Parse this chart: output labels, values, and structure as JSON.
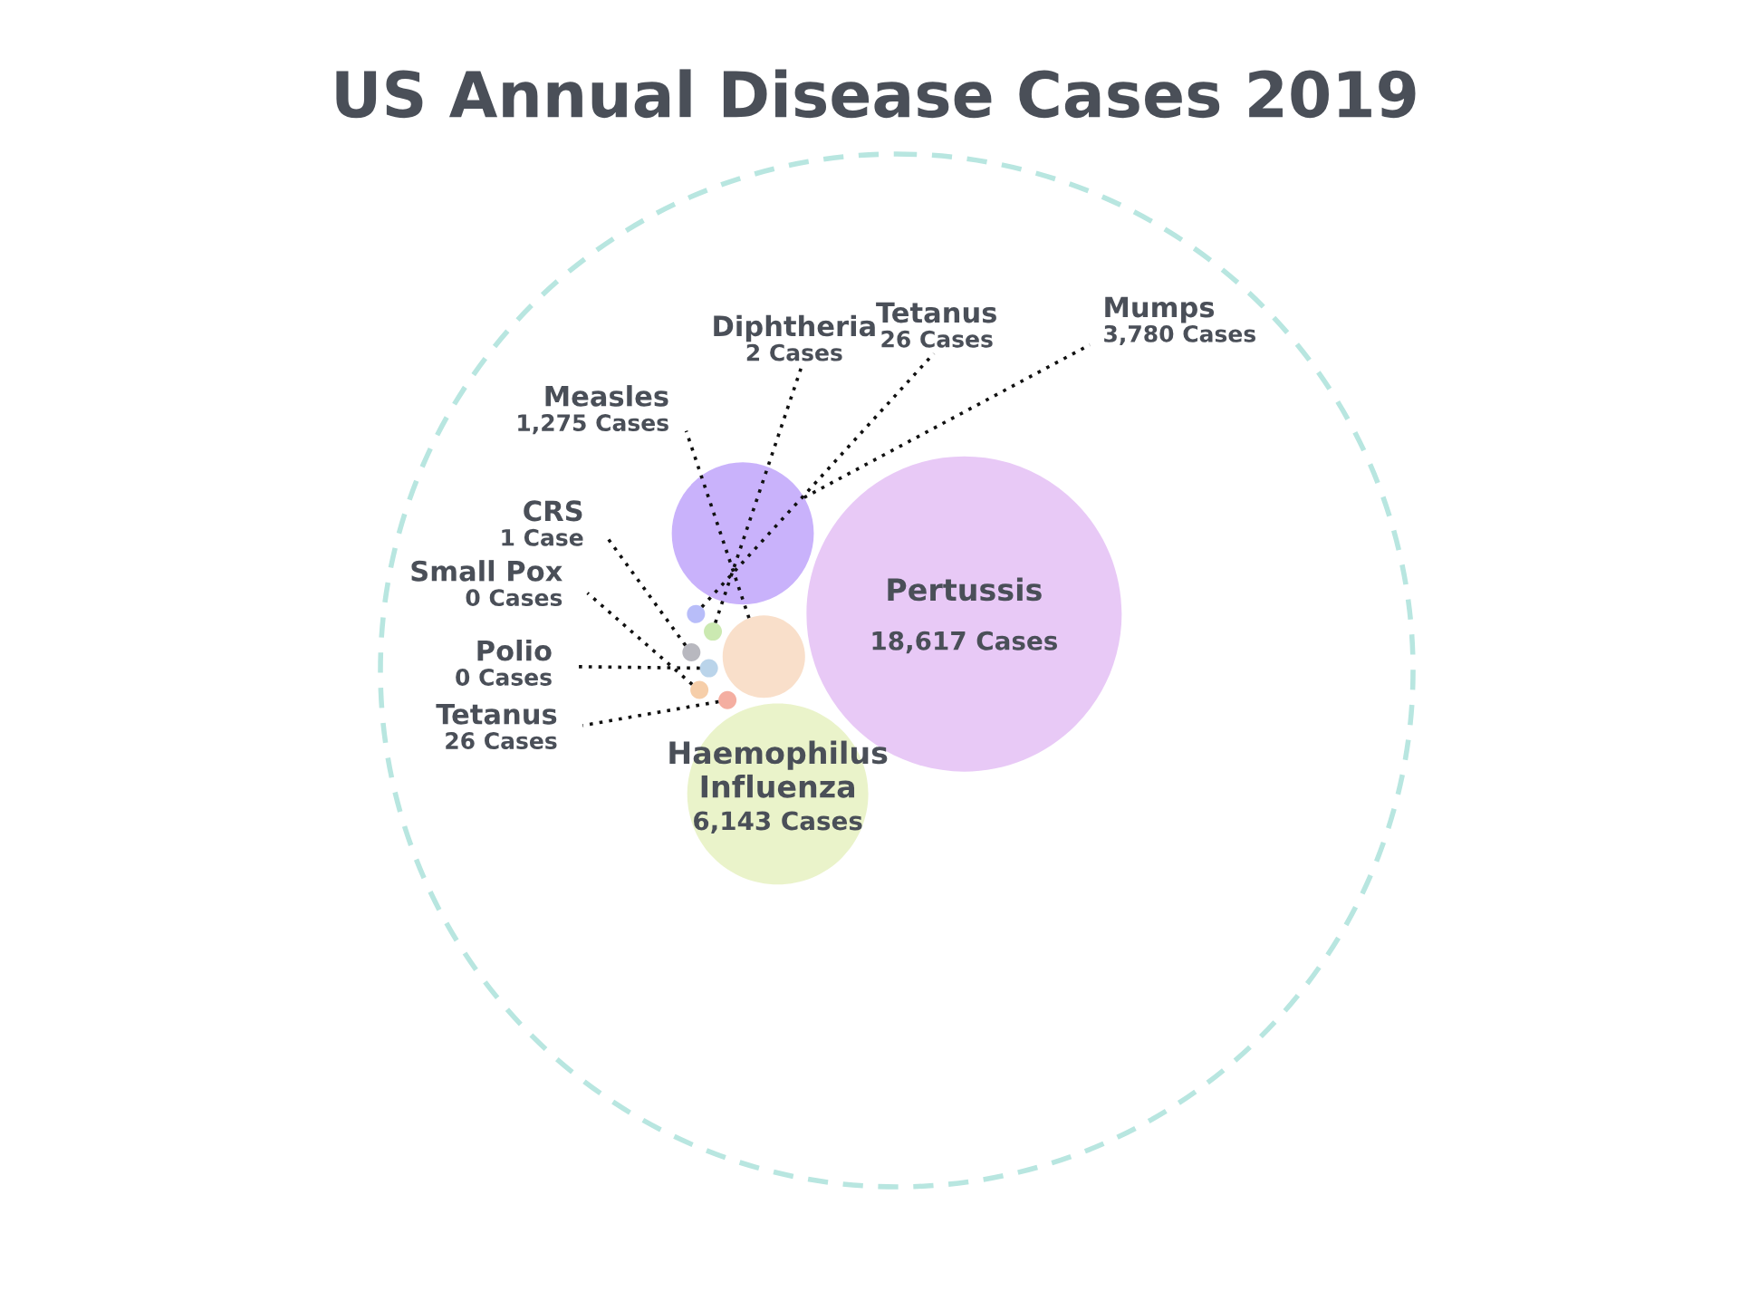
{
  "chart_data": {
    "type": "other",
    "title": "US Annual Disease Cases 2019",
    "categories": [
      "Pertussis",
      "Mumps",
      "Measles",
      "Haemophilus Influenza",
      "Tetanus",
      "Polio",
      "Diphtheria",
      "Small Pox",
      "CRS",
      "Tetanus"
    ],
    "values": [
      18617,
      3780,
      1275,
      6143,
      26,
      0,
      2,
      0,
      1,
      26
    ],
    "value_labels": [
      "18,617 Cases",
      "3,780 Cases",
      "1,275 Cases",
      "6,143 Cases",
      "26 Cases",
      "0 Cases",
      "2 Cases",
      "0 Cases",
      "1 Case",
      "26 Cases"
    ],
    "colors": [
      "#e6c3f5",
      "#c3aafb",
      "#f8dcc4",
      "#e8f2c4",
      "#f3a597",
      "#b3cfe8",
      "#c5e7a8",
      "#f5c9a0",
      "#b0b0b8",
      "#b0b6f8"
    ]
  }
}
